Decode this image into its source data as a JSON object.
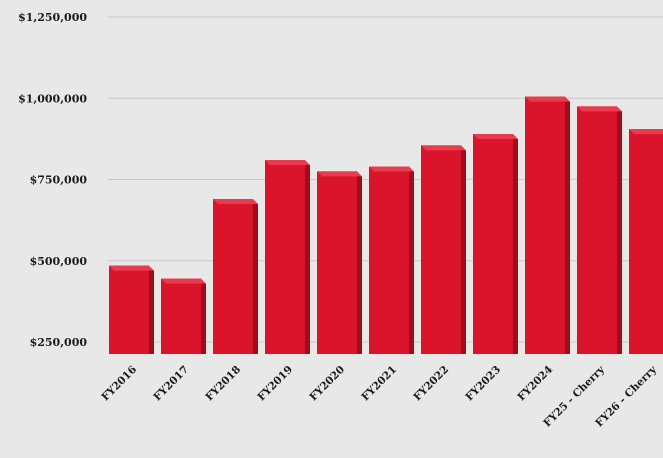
{
  "chart_data": {
    "type": "bar",
    "title": "",
    "xlabel": "",
    "ylabel": "",
    "categories": [
      "FY2016",
      "FY2017",
      "FY2018",
      "FY2019",
      "FY2020",
      "FY2021",
      "FY2022",
      "FY2023",
      "FY2024",
      "FY25 - Cherry",
      "FY26 - Cherry"
    ],
    "series": [
      {
        "values": [
          485000,
          445000,
          690000,
          810000,
          775000,
          790000,
          855000,
          890000,
          1005000,
          975000,
          905000
        ]
      }
    ],
    "ylim": [
      250000,
      1250000
    ],
    "yticks": [
      250000,
      500000,
      750000,
      1000000,
      1250000
    ],
    "ytick_labels": [
      "$250,000",
      "$500,000",
      "$750,000",
      "$1,000,000",
      "$1,250,000"
    ],
    "grid": true,
    "legend": "none",
    "colors": {
      "bar": "#d9142b",
      "bar_top": "#ea3a4e",
      "bar_shadow": "#9b0e1e",
      "background": "#e8e8e8",
      "gridline": "#c9c9c9",
      "text": "#1a1a1a"
    }
  }
}
